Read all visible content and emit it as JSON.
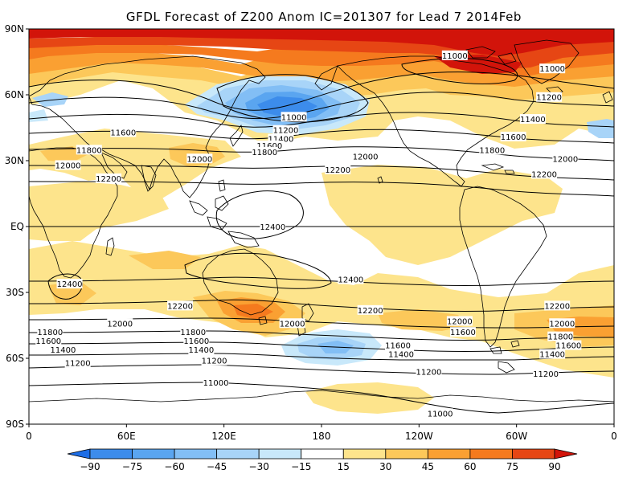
{
  "title": "GFDL Forecast of Z200 Anom IC=201307 for Lead 7 2014Feb",
  "map": {
    "lat_ticks": [
      "90N",
      "60N",
      "30N",
      "EQ",
      "30S",
      "60S",
      "90S"
    ],
    "lon_ticks": [
      "0",
      "60E",
      "120E",
      "180",
      "120W",
      "60W",
      "0"
    ],
    "contour_labels": [
      {
        "text": "11000",
        "lon": 262,
        "lat": 78
      },
      {
        "text": "11000",
        "lon": 322,
        "lat": 72
      },
      {
        "text": "11200",
        "lon": 320,
        "lat": 59
      },
      {
        "text": "11400",
        "lon": 310,
        "lat": 49
      },
      {
        "text": "11600",
        "lon": 298,
        "lat": 41
      },
      {
        "text": "11800",
        "lon": 285,
        "lat": 35
      },
      {
        "text": "12000",
        "lon": 330,
        "lat": 31
      },
      {
        "text": "12200",
        "lon": 317,
        "lat": 24
      },
      {
        "text": "11000",
        "lon": 163,
        "lat": 50
      },
      {
        "text": "11200",
        "lon": 158,
        "lat": 44
      },
      {
        "text": "11400",
        "lon": 155,
        "lat": 40
      },
      {
        "text": "11600",
        "lon": 148,
        "lat": 37
      },
      {
        "text": "11800",
        "lon": 145,
        "lat": 34
      },
      {
        "text": "12000",
        "lon": 207,
        "lat": 32
      },
      {
        "text": "12200",
        "lon": 190,
        "lat": 26
      },
      {
        "text": "12000",
        "lon": 105,
        "lat": 31
      },
      {
        "text": "11600",
        "lon": 58,
        "lat": 43
      },
      {
        "text": "11800",
        "lon": 37,
        "lat": 35
      },
      {
        "text": "12000",
        "lon": 24,
        "lat": 28
      },
      {
        "text": "12200",
        "lon": 49,
        "lat": 22
      },
      {
        "text": "12400",
        "lon": 150,
        "lat": 0
      },
      {
        "text": "12400",
        "lon": 25,
        "lat": -26
      },
      {
        "text": "12400",
        "lon": 198,
        "lat": -24
      },
      {
        "text": "12200",
        "lon": 93,
        "lat": -36
      },
      {
        "text": "12200",
        "lon": 210,
        "lat": -38
      },
      {
        "text": "12200",
        "lon": 325,
        "lat": -36
      },
      {
        "text": "12000",
        "lon": 56,
        "lat": -44
      },
      {
        "text": "12000",
        "lon": 162,
        "lat": -44
      },
      {
        "text": "12000",
        "lon": 265,
        "lat": -43
      },
      {
        "text": "12000",
        "lon": 328,
        "lat": -44
      },
      {
        "text": "11600",
        "lon": 267,
        "lat": -48
      },
      {
        "text": "11800",
        "lon": 13,
        "lat": -48
      },
      {
        "text": "11800",
        "lon": 101,
        "lat": -48
      },
      {
        "text": "11800",
        "lon": 327,
        "lat": -50
      },
      {
        "text": "11600",
        "lon": 12,
        "lat": -52
      },
      {
        "text": "11600",
        "lon": 103,
        "lat": -52
      },
      {
        "text": "11600",
        "lon": 227,
        "lat": -54
      },
      {
        "text": "11600",
        "lon": 332,
        "lat": -54
      },
      {
        "text": "11400",
        "lon": 21,
        "lat": -56
      },
      {
        "text": "11400",
        "lon": 106,
        "lat": -56
      },
      {
        "text": "11400",
        "lon": 229,
        "lat": -58
      },
      {
        "text": "11400",
        "lon": 322,
        "lat": -58
      },
      {
        "text": "11200",
        "lon": 30,
        "lat": -62
      },
      {
        "text": "11200",
        "lon": 114,
        "lat": -61
      },
      {
        "text": "11200",
        "lon": 246,
        "lat": -66
      },
      {
        "text": "11200",
        "lon": 318,
        "lat": -67
      },
      {
        "text": "11000",
        "lon": 115,
        "lat": -71
      },
      {
        "text": "11000",
        "lon": 253,
        "lat": -85
      }
    ]
  },
  "colorbar": {
    "labels": [
      "−90",
      "−75",
      "−60",
      "−45",
      "−30",
      "−15",
      "15",
      "30",
      "45",
      "60",
      "75",
      "90"
    ],
    "colors": [
      "#1e6ee6",
      "#3c8ceb",
      "#5aa5f0",
      "#82bef5",
      "#a8d4f8",
      "#c8e8fa",
      "#ffffff",
      "#fde48c",
      "#fcc85a",
      "#faa032",
      "#f57a1e",
      "#e64614",
      "#d2140a"
    ]
  },
  "colors": {
    "land_outline": "#000000",
    "contour": "#000000"
  }
}
